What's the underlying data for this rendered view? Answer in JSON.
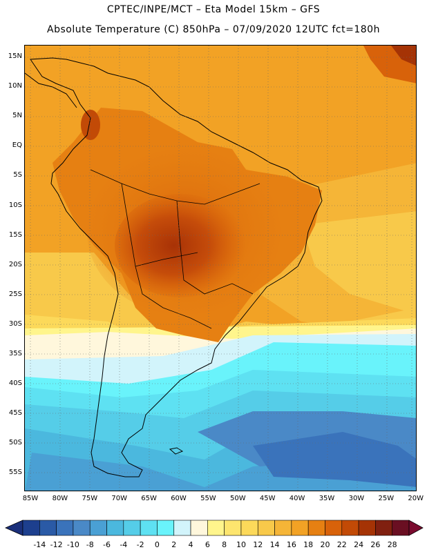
{
  "header": {
    "title_line1": "CPTEC/INPE/MCT –   Eta Model 15km – GFS",
    "title_line2": "Absolute Temperature (C) 850hPa – 07/09/2020 12UTC fct=180h"
  },
  "map": {
    "lat_labels": [
      "15N",
      "10N",
      "5N",
      "EQ",
      "5S",
      "10S",
      "15S",
      "20S",
      "25S",
      "30S",
      "35S",
      "40S",
      "45S",
      "50S",
      "55S"
    ],
    "lon_labels": [
      "85W",
      "80W",
      "75W",
      "70W",
      "65W",
      "60W",
      "55W",
      "50W",
      "45W",
      "40W",
      "35W",
      "30W",
      "25W",
      "20W"
    ]
  },
  "colorbar": {
    "labels": [
      "-14",
      "-12",
      "-10",
      "-8",
      "-6",
      "-4",
      "-2",
      "0",
      "2",
      "4",
      "6",
      "8",
      "10",
      "12",
      "14",
      "16",
      "18",
      "20",
      "22",
      "24",
      "26",
      "28"
    ],
    "colors": [
      "#1d3f8e",
      "#2a5aa6",
      "#3a73bb",
      "#4a89c7",
      "#4aa0d4",
      "#4bb8de",
      "#55cde8",
      "#5ee1f2",
      "#69f3fb",
      "#d2f4fb",
      "#fff7dc",
      "#fff58c",
      "#fde56e",
      "#fcd95a",
      "#f8c94a",
      "#f5b537",
      "#f2a225",
      "#e68012",
      "#d8620a",
      "#c24a06",
      "#a53305",
      "#802010",
      "#6a0f22"
    ],
    "left_arrow_color": "#1a2f7a",
    "right_arrow_color": "#7a0b2e"
  }
}
